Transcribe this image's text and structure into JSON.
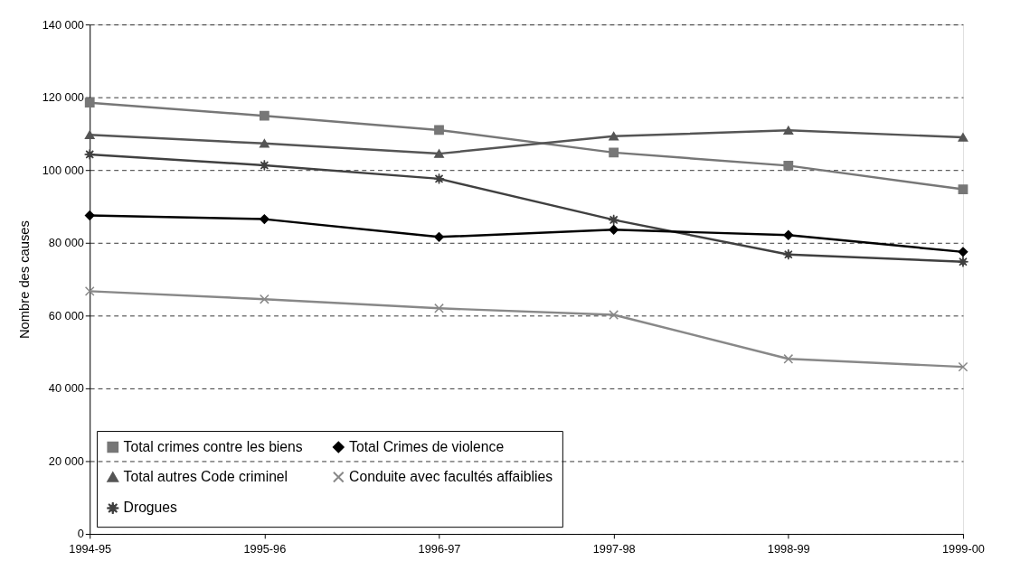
{
  "chart_data": {
    "type": "line",
    "ylabel": "Nombre des causes",
    "categories": [
      "1994-95",
      "1995-96",
      "1996-97",
      "1997-98",
      "1998-99",
      "1999-00"
    ],
    "series": [
      {
        "name": "Total crimes contre les biens",
        "color": "#777777",
        "marker": "square",
        "values": [
          118500,
          114900,
          111000,
          104800,
          101200,
          94700
        ]
      },
      {
        "name": "Total  autres Code criminel",
        "color": "#555555",
        "marker": "triangle",
        "values": [
          109700,
          107300,
          104500,
          109300,
          110900,
          109000
        ]
      },
      {
        "name": "Drogues",
        "color": "#404040",
        "marker": "star",
        "values": [
          104300,
          101300,
          97600,
          86300,
          76800,
          74800
        ]
      },
      {
        "name": "Total  Crimes de violence",
        "color": "#000000",
        "marker": "diamond",
        "values": [
          87500,
          86500,
          81600,
          83600,
          82100,
          77500
        ]
      },
      {
        "name": "Conduite avec facultés affaiblies",
        "color": "#888888",
        "marker": "cross",
        "values": [
          66700,
          64500,
          62000,
          60200,
          48100,
          45900
        ]
      }
    ],
    "ylim": [
      0,
      140000
    ],
    "yticks": [
      0,
      {
        "value": 20000,
        "label": "20 000"
      },
      {
        "value": 40000,
        "label": "40 000"
      },
      {
        "value": 60000,
        "label": "60 000"
      },
      {
        "value": 80000,
        "label": "80 000"
      },
      {
        "value": 100000,
        "label": "100 000"
      },
      {
        "value": 120000,
        "label": "120 000"
      },
      {
        "value": 140000,
        "label": "140 000"
      }
    ],
    "grid": "y",
    "legend": "bottom left",
    "line_style": "solid"
  }
}
